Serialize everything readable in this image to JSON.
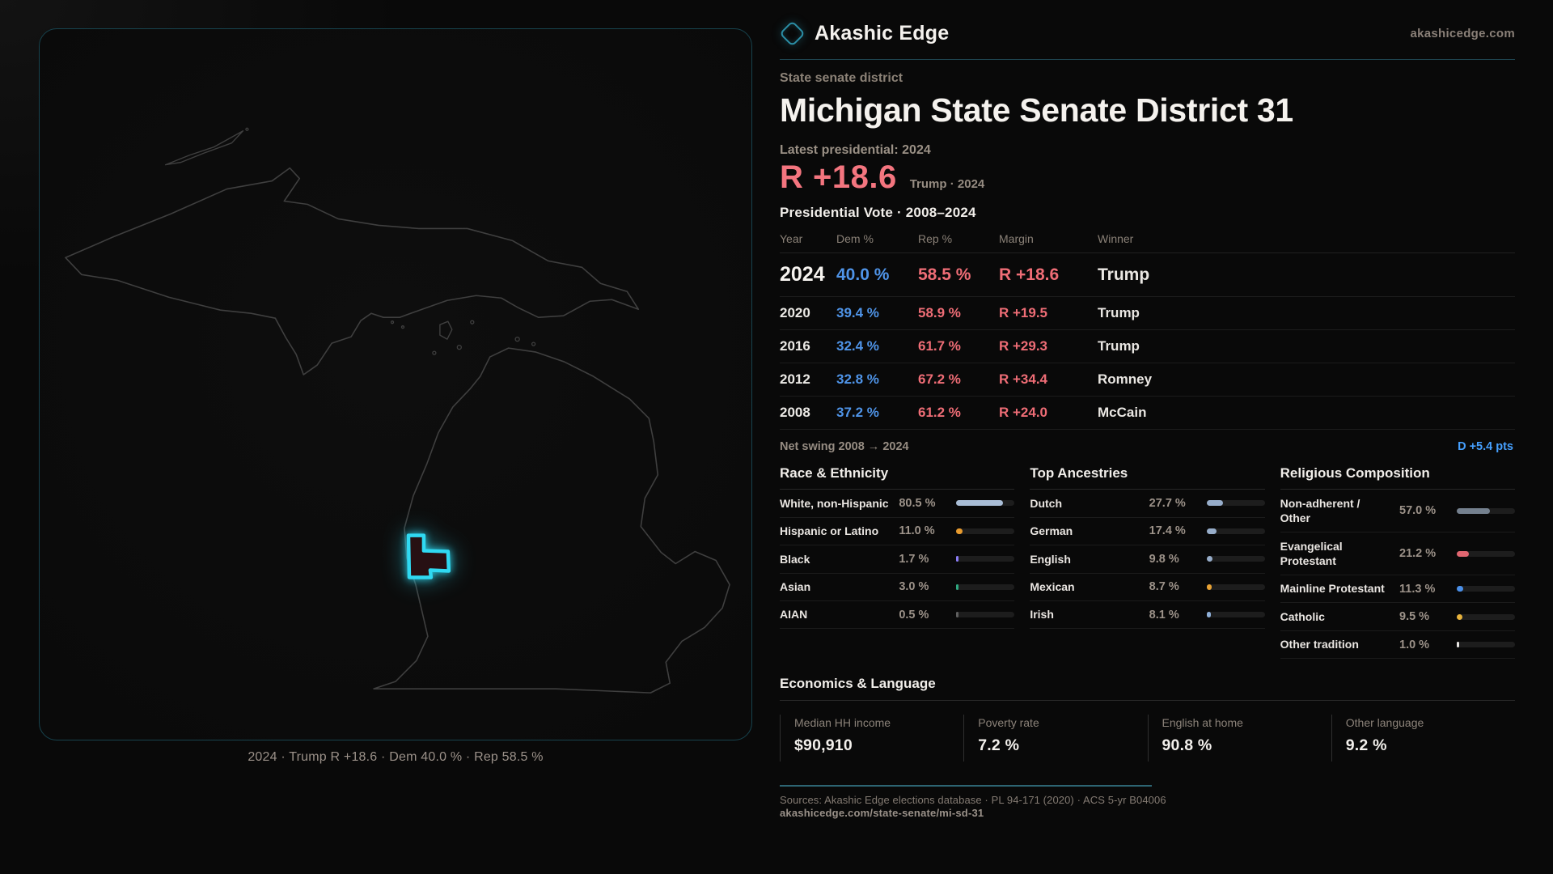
{
  "header": {
    "brand": "Akashic Edge",
    "site": "akashicedge.com"
  },
  "hero": {
    "eyebrow": "State senate district",
    "title": "Michigan State Senate District 31",
    "latest_label": "Latest presidential: 2024",
    "margin_value": "R +18.6",
    "margin_context": "Trump · 2024"
  },
  "vote_table": {
    "title": "Presidential Vote · 2008–2024",
    "columns": [
      "Year",
      "Dem %",
      "Rep %",
      "Margin",
      "Winner"
    ],
    "rows": [
      {
        "year": "2024",
        "dem": "40.0 %",
        "rep": "58.5 %",
        "margin": "R +18.6",
        "winner": "Trump",
        "featured": true
      },
      {
        "year": "2020",
        "dem": "39.4 %",
        "rep": "58.9 %",
        "margin": "R +19.5",
        "winner": "Trump",
        "featured": false
      },
      {
        "year": "2016",
        "dem": "32.4 %",
        "rep": "61.7 %",
        "margin": "R +29.3",
        "winner": "Trump",
        "featured": false
      },
      {
        "year": "2012",
        "dem": "32.8 %",
        "rep": "67.2 %",
        "margin": "R +34.4",
        "winner": "Romney",
        "featured": false
      },
      {
        "year": "2008",
        "dem": "37.2 %",
        "rep": "61.2 %",
        "margin": "R +24.0",
        "winner": "McCain",
        "featured": false
      }
    ],
    "net_swing_label": "Net swing 2008 → 2024",
    "net_swing_value": "D +5.4 pts"
  },
  "demographics": [
    {
      "title": "Race & Ethnicity",
      "rows": [
        {
          "label": "White, non-Hispanic",
          "value": "80.5 %",
          "pct": 80.5,
          "color": "#a9bdd6"
        },
        {
          "label": "Hispanic or Latino",
          "value": "11.0 %",
          "pct": 11.0,
          "color": "#e89b2e"
        },
        {
          "label": "Black",
          "value": "1.7 %",
          "pct": 1.7,
          "color": "#8b7cf6"
        },
        {
          "label": "Asian",
          "value": "3.0 %",
          "pct": 3.0,
          "color": "#2fa880"
        },
        {
          "label": "AIAN",
          "value": "0.5 %",
          "pct": 0.5,
          "color": "#5f5f5f"
        }
      ]
    },
    {
      "title": "Top Ancestries",
      "rows": [
        {
          "label": "Dutch",
          "value": "27.7 %",
          "pct": 27.7,
          "color": "#97adca"
        },
        {
          "label": "German",
          "value": "17.4 %",
          "pct": 17.4,
          "color": "#97adca"
        },
        {
          "label": "English",
          "value": "9.8 %",
          "pct": 9.8,
          "color": "#97adca"
        },
        {
          "label": "Mexican",
          "value": "8.7 %",
          "pct": 8.7,
          "color": "#e8a234"
        },
        {
          "label": "Irish",
          "value": "8.1 %",
          "pct": 8.1,
          "color": "#8fb0d9"
        }
      ]
    },
    {
      "title": "Religious Composition",
      "rows": [
        {
          "label": "Non-adherent / Other",
          "value": "57.0 %",
          "pct": 57.0,
          "color": "#74808e"
        },
        {
          "label": "Evangelical Protestant",
          "value": "21.2 %",
          "pct": 21.2,
          "color": "#e06670"
        },
        {
          "label": "Mainline Protestant",
          "value": "11.3 %",
          "pct": 11.3,
          "color": "#4a8fe8"
        },
        {
          "label": "Catholic",
          "value": "9.5 %",
          "pct": 9.5,
          "color": "#e8b33c"
        },
        {
          "label": "Other tradition",
          "value": "1.0 %",
          "pct": 1.0,
          "color": "#e8e6e3"
        }
      ]
    }
  ],
  "economics": {
    "title": "Economics & Language",
    "stats": [
      {
        "label": "Median HH income",
        "value": "$90,910"
      },
      {
        "label": "Poverty rate",
        "value": "7.2 %"
      },
      {
        "label": "English at home",
        "value": "90.8 %"
      },
      {
        "label": "Other language",
        "value": "9.2 %"
      }
    ]
  },
  "map": {
    "caption": "2024 · Trump R +18.6 · Dem 40.0 % · Rep 58.5 %",
    "district_color": "#2fd9f2"
  },
  "footer": {
    "sources": "Sources: Akashic Edge elections database · PL 94-171 (2020) · ACS 5-yr B04006",
    "url": "akashicedge.com/state-senate/mi-sd-31"
  }
}
